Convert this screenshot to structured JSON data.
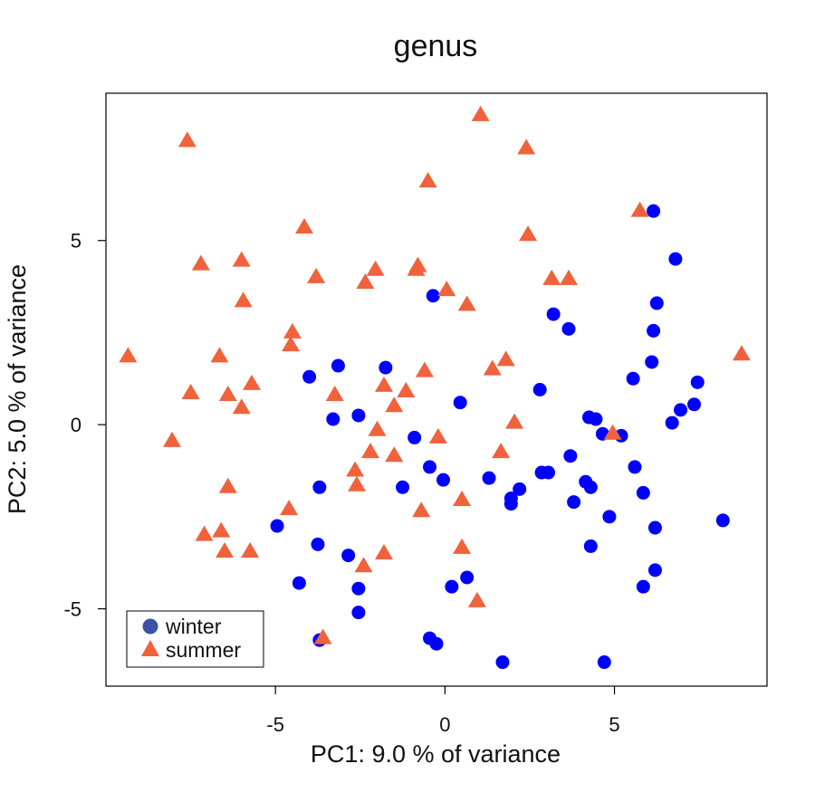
{
  "chart_data": {
    "type": "scatter",
    "title": "genus",
    "xlabel": "PC1: 9.0 % of variance",
    "ylabel": "PC2: 5.0 % of variance",
    "xlim": [
      -10,
      9.5
    ],
    "ylim": [
      -7.1,
      9
    ],
    "xticks": [
      -5,
      0,
      5
    ],
    "yticks": [
      -5,
      0,
      5
    ],
    "grid": false,
    "legend_position": "bottom-left",
    "series": [
      {
        "name": "winter",
        "marker": "circle",
        "color": "#0000ff",
        "legend_color": "#3a53a4",
        "points": [
          [
            -0.35,
            3.5
          ],
          [
            6.15,
            5.8
          ],
          [
            6.8,
            4.5
          ],
          [
            6.25,
            3.3
          ],
          [
            3.2,
            3.0
          ],
          [
            3.65,
            2.6
          ],
          [
            6.15,
            2.55
          ],
          [
            -3.15,
            1.6
          ],
          [
            -4.0,
            1.3
          ],
          [
            -1.75,
            1.55
          ],
          [
            6.1,
            1.7
          ],
          [
            5.55,
            1.25
          ],
          [
            7.45,
            1.15
          ],
          [
            2.8,
            0.95
          ],
          [
            0.45,
            0.6
          ],
          [
            7.35,
            0.55
          ],
          [
            6.95,
            0.4
          ],
          [
            6.7,
            0.05
          ],
          [
            4.25,
            0.2
          ],
          [
            4.45,
            0.15
          ],
          [
            -3.3,
            0.15
          ],
          [
            -2.55,
            0.25
          ],
          [
            4.65,
            -0.25
          ],
          [
            5.2,
            -0.3
          ],
          [
            -0.9,
            -0.35
          ],
          [
            3.7,
            -0.85
          ],
          [
            -0.45,
            -1.15
          ],
          [
            5.6,
            -1.15
          ],
          [
            -0.05,
            -1.5
          ],
          [
            1.3,
            -1.45
          ],
          [
            2.85,
            -1.3
          ],
          [
            3.05,
            -1.3
          ],
          [
            4.15,
            -1.55
          ],
          [
            4.3,
            -1.7
          ],
          [
            5.85,
            -1.85
          ],
          [
            -3.7,
            -1.7
          ],
          [
            -1.25,
            -1.7
          ],
          [
            2.2,
            -1.75
          ],
          [
            1.95,
            -2.0
          ],
          [
            1.95,
            -2.15
          ],
          [
            3.8,
            -2.1
          ],
          [
            4.85,
            -2.5
          ],
          [
            6.2,
            -2.8
          ],
          [
            8.2,
            -2.6
          ],
          [
            -4.95,
            -2.75
          ],
          [
            -3.75,
            -3.25
          ],
          [
            -2.85,
            -3.55
          ],
          [
            4.3,
            -3.3
          ],
          [
            6.2,
            -3.95
          ],
          [
            -4.3,
            -4.3
          ],
          [
            0.65,
            -4.15
          ],
          [
            0.2,
            -4.4
          ],
          [
            5.85,
            -4.4
          ],
          [
            -2.55,
            -4.45
          ],
          [
            -2.55,
            -5.1
          ],
          [
            -3.7,
            -5.85
          ],
          [
            -0.45,
            -5.8
          ],
          [
            -0.25,
            -5.95
          ],
          [
            1.7,
            -6.45
          ],
          [
            4.7,
            -6.45
          ]
        ]
      },
      {
        "name": "summer",
        "marker": "triangle",
        "color": "#f0623c",
        "legend_color": "#f0623c",
        "points": [
          [
            1.05,
            8.4
          ],
          [
            -7.6,
            7.7
          ],
          [
            2.4,
            7.5
          ],
          [
            -0.5,
            6.6
          ],
          [
            5.75,
            5.8
          ],
          [
            -4.15,
            5.35
          ],
          [
            2.45,
            5.15
          ],
          [
            -7.2,
            4.35
          ],
          [
            -6.0,
            4.45
          ],
          [
            -2.05,
            4.2
          ],
          [
            -0.8,
            4.3
          ],
          [
            -0.85,
            4.2
          ],
          [
            -3.8,
            4.0
          ],
          [
            -2.35,
            3.85
          ],
          [
            3.15,
            3.95
          ],
          [
            3.65,
            3.95
          ],
          [
            0.05,
            3.65
          ],
          [
            -5.95,
            3.35
          ],
          [
            0.65,
            3.25
          ],
          [
            -4.5,
            2.5
          ],
          [
            -4.55,
            2.15
          ],
          [
            -9.35,
            1.85
          ],
          [
            -6.65,
            1.85
          ],
          [
            8.75,
            1.9
          ],
          [
            1.8,
            1.75
          ],
          [
            1.4,
            1.5
          ],
          [
            -0.6,
            1.45
          ],
          [
            -5.7,
            1.1
          ],
          [
            -1.8,
            1.05
          ],
          [
            -1.15,
            0.9
          ],
          [
            -7.5,
            0.85
          ],
          [
            -6.4,
            0.8
          ],
          [
            -3.25,
            0.8
          ],
          [
            -6.0,
            0.45
          ],
          [
            -1.5,
            0.5
          ],
          [
            2.05,
            0.05
          ],
          [
            -2.0,
            -0.15
          ],
          [
            4.95,
            -0.25
          ],
          [
            -0.2,
            -0.35
          ],
          [
            -8.05,
            -0.45
          ],
          [
            -2.2,
            -0.75
          ],
          [
            1.65,
            -0.75
          ],
          [
            -1.5,
            -0.85
          ],
          [
            -2.65,
            -1.25
          ],
          [
            -2.6,
            -1.65
          ],
          [
            -6.4,
            -1.7
          ],
          [
            0.5,
            -2.05
          ],
          [
            -4.6,
            -2.3
          ],
          [
            -0.7,
            -2.35
          ],
          [
            -6.6,
            -2.9
          ],
          [
            -7.1,
            -3.0
          ],
          [
            -6.5,
            -3.45
          ],
          [
            -5.75,
            -3.45
          ],
          [
            0.5,
            -3.35
          ],
          [
            -1.8,
            -3.5
          ],
          [
            -2.4,
            -3.85
          ],
          [
            0.95,
            -4.8
          ],
          [
            -3.6,
            -5.8
          ]
        ]
      }
    ]
  }
}
